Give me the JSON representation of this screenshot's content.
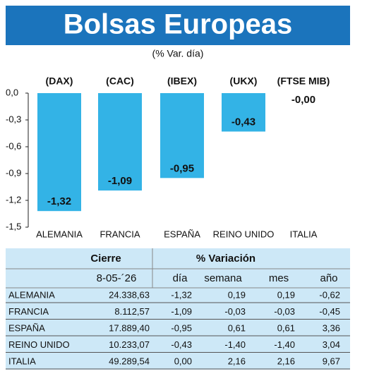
{
  "chart_data": {
    "type": "bar",
    "title": "Bolsas Europeas",
    "subtitle": "(% Var. día)",
    "categories": [
      "ALEMANIA",
      "FRANCIA",
      "ESPAÑA",
      "REINO UNIDO",
      "ITALIA"
    ],
    "indices": [
      "(DAX)",
      "(CAC)",
      "(IBEX)",
      "(UKX)",
      "(FTSE MIB)"
    ],
    "values": [
      -1.32,
      -1.09,
      -0.95,
      -0.43,
      0
    ],
    "value_labels": [
      "-1,32",
      "-1,09",
      "-0,95",
      "-0,43",
      "-0,00"
    ],
    "color": "#33b3e6",
    "ylim": [
      -1.5,
      0
    ],
    "yticks": [
      {
        "value": 0,
        "label": "0,0"
      },
      {
        "value": -0.3,
        "label": "-0,3"
      },
      {
        "value": -0.6,
        "label": "-0,6"
      },
      {
        "value": -0.9,
        "label": "-0,9"
      },
      {
        "value": -1.2,
        "label": "-1,2"
      },
      {
        "value": -1.5,
        "label": "-1,5"
      }
    ]
  },
  "table": {
    "headers": [
      "Cierre",
      "% Variación"
    ],
    "subheaders": [
      "8-05-´26",
      "día",
      "semana",
      "mes",
      "año"
    ],
    "rows": [
      [
        "ALEMANIA",
        "24.338,63",
        "-1,32",
        "0,19",
        "0,19",
        "-0,62"
      ],
      [
        "FRANCIA",
        "8.112,57",
        "-1,09",
        "-0,03",
        "-0,03",
        "-0,45"
      ],
      [
        "ESPAÑA",
        "17.889,40",
        "-0,95",
        "0,61",
        "0,61",
        "3,36"
      ],
      [
        "REINO UNIDO",
        "10.233,07",
        "-0,43",
        "-1,40",
        "-1,40",
        "3,04"
      ],
      [
        "ITALIA",
        "49.289,54",
        "0,00",
        "2,16",
        "2,16",
        "9,67"
      ]
    ]
  }
}
